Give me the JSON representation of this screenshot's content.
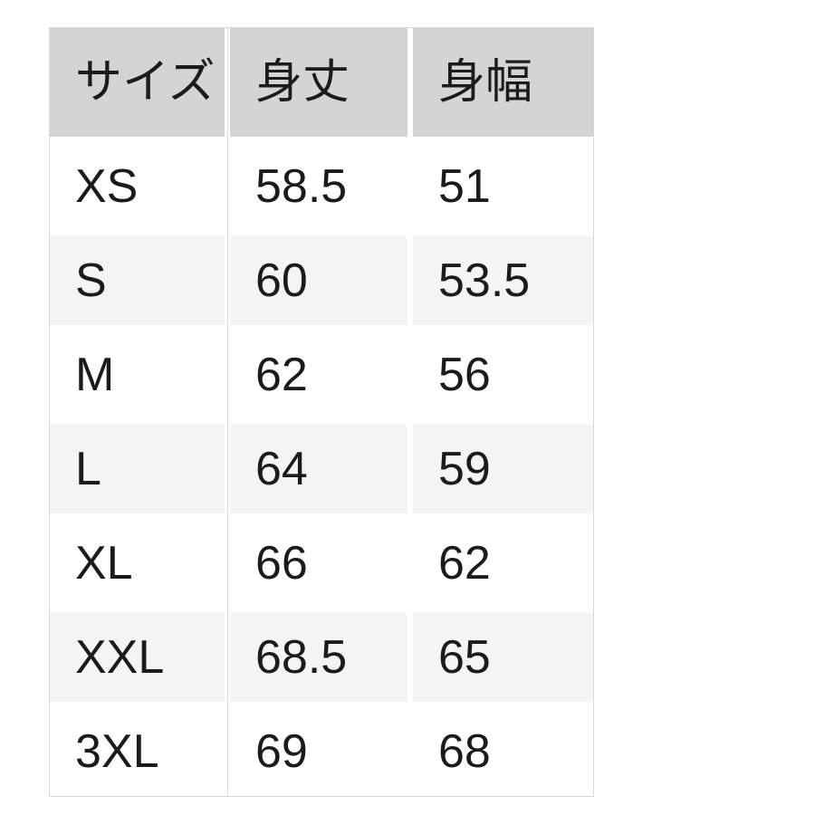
{
  "size_chart": {
    "headers": {
      "size": "サイズ",
      "body_length": "身丈",
      "body_width": "身幅"
    },
    "rows": [
      {
        "size": "XS",
        "body_length": "58.5",
        "body_width": "51"
      },
      {
        "size": "S",
        "body_length": "60",
        "body_width": "53.5"
      },
      {
        "size": "M",
        "body_length": "62",
        "body_width": "56"
      },
      {
        "size": "L",
        "body_length": "64",
        "body_width": "59"
      },
      {
        "size": "XL",
        "body_length": "66",
        "body_width": "62"
      },
      {
        "size": "XXL",
        "body_length": "68.5",
        "body_width": "65"
      },
      {
        "size": "3XL",
        "body_length": "69",
        "body_width": "68"
      }
    ],
    "colors": {
      "header_bg": "#d4d4d4",
      "alt_row_bg": "#f4f4f4",
      "row_bg": "#ffffff",
      "border": "#d9d9d9",
      "text": "#1b1b1b",
      "page_bg": "#ffffff"
    }
  }
}
